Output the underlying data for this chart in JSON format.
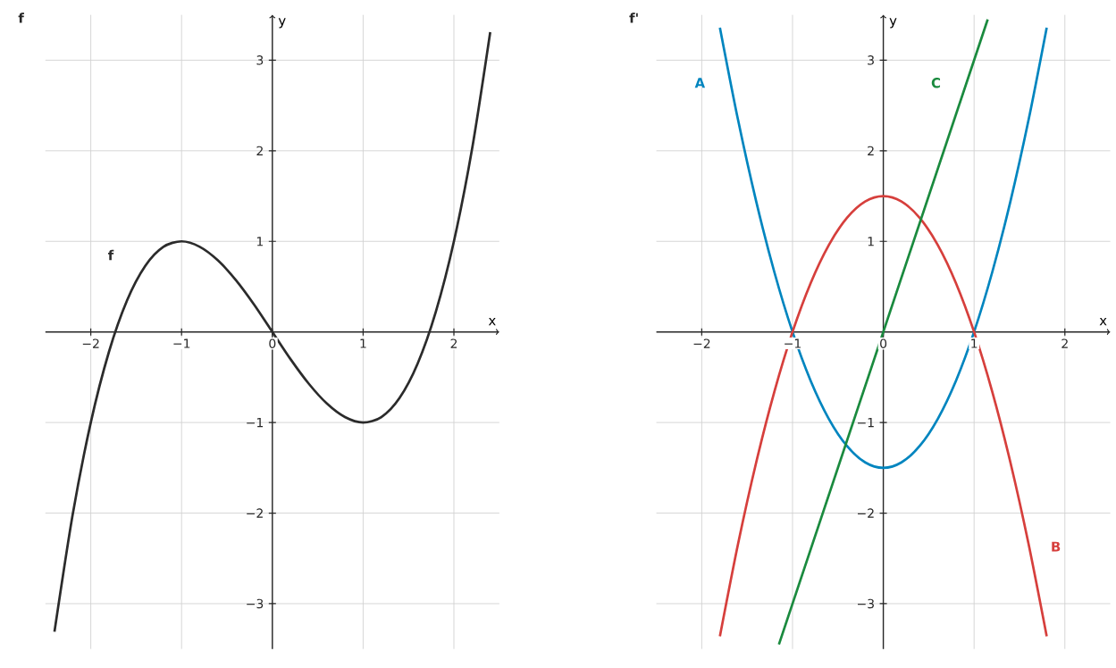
{
  "chart_data": [
    {
      "type": "line",
      "title": "f",
      "xlabel": "x",
      "ylabel": "y",
      "xlim": [
        -2.5,
        2.5
      ],
      "ylim": [
        -3.5,
        3.5
      ],
      "xticks": [
        {
          "value": -2,
          "label": "−2"
        },
        {
          "value": -1,
          "label": "−1"
        },
        {
          "value": 0,
          "label": "0"
        },
        1,
        2
      ],
      "yticks": [
        {
          "value": -3,
          "label": "−3"
        },
        {
          "value": -2,
          "label": "−2"
        },
        {
          "value": -1,
          "label": "−1"
        },
        1,
        2,
        3
      ],
      "grid": true,
      "marker": "none",
      "line_style": "solid",
      "series": [
        {
          "name": "f",
          "color": "#2b2b2b",
          "x": [
            -2.4,
            -2.2,
            -2.0,
            -1.8,
            -1.6,
            -1.4,
            -1.2,
            -1.0,
            -0.8,
            -0.6,
            -0.4,
            -0.2,
            0,
            0.2,
            0.4,
            0.6,
            0.8,
            1.0,
            1.2,
            1.4,
            1.6,
            1.8,
            2.0,
            2.2,
            2.4
          ],
          "values": [
            -3.31,
            -2.02,
            -1,
            -0.22,
            0.35,
            0.73,
            0.94,
            1,
            0.94,
            0.79,
            0.57,
            0.3,
            0,
            -0.3,
            -0.57,
            -0.79,
            -0.94,
            -1,
            -0.94,
            -0.73,
            -0.35,
            0.22,
            1,
            2.02,
            3.31
          ]
        }
      ]
    },
    {
      "type": "line",
      "title": "f'",
      "xlabel": "x",
      "ylabel": "y",
      "xlim": [
        -2.5,
        2.5
      ],
      "ylim": [
        -3.5,
        3.5
      ],
      "xticks": [
        {
          "value": -2,
          "label": "−2"
        },
        {
          "value": -1,
          "label": "−1"
        },
        {
          "value": 0,
          "label": "0"
        },
        1,
        2
      ],
      "yticks": [
        {
          "value": -3,
          "label": "−3"
        },
        {
          "value": -2,
          "label": "−2"
        },
        {
          "value": -1,
          "label": "−1"
        },
        1,
        2,
        3
      ],
      "grid": true,
      "marker": "none",
      "line_style": "solid",
      "series": [
        {
          "name": "A",
          "color": "#0085bf",
          "x": [
            -1.8,
            -1.6,
            -1.4,
            -1.2,
            -1.0,
            -0.8,
            -0.6,
            -0.4,
            -0.2,
            0,
            0.2,
            0.4,
            0.6,
            0.8,
            1.0,
            1.2,
            1.4,
            1.6,
            1.8
          ],
          "values": [
            3.36,
            2.34,
            1.44,
            0.66,
            0,
            -0.54,
            -0.96,
            -1.26,
            -1.44,
            -1.5,
            -1.44,
            -1.26,
            -0.96,
            -0.54,
            0,
            0.66,
            1.44,
            2.34,
            3.36
          ]
        },
        {
          "name": "B",
          "color": "#d63f3c",
          "x": [
            -1.8,
            -1.6,
            -1.4,
            -1.2,
            -1.0,
            -0.8,
            -0.6,
            -0.4,
            -0.2,
            0,
            0.2,
            0.4,
            0.6,
            0.8,
            1.0,
            1.2,
            1.4,
            1.6,
            1.8
          ],
          "values": [
            -3.36,
            -2.34,
            -1.44,
            -0.66,
            0,
            0.54,
            0.96,
            1.26,
            1.44,
            1.5,
            1.44,
            1.26,
            0.96,
            0.54,
            0,
            -0.66,
            -1.44,
            -2.34,
            -3.36
          ]
        },
        {
          "name": "C",
          "color": "#1a8a3e",
          "x": [
            -1.15,
            1.15
          ],
          "values": [
            -3.45,
            3.45
          ]
        }
      ]
    }
  ]
}
